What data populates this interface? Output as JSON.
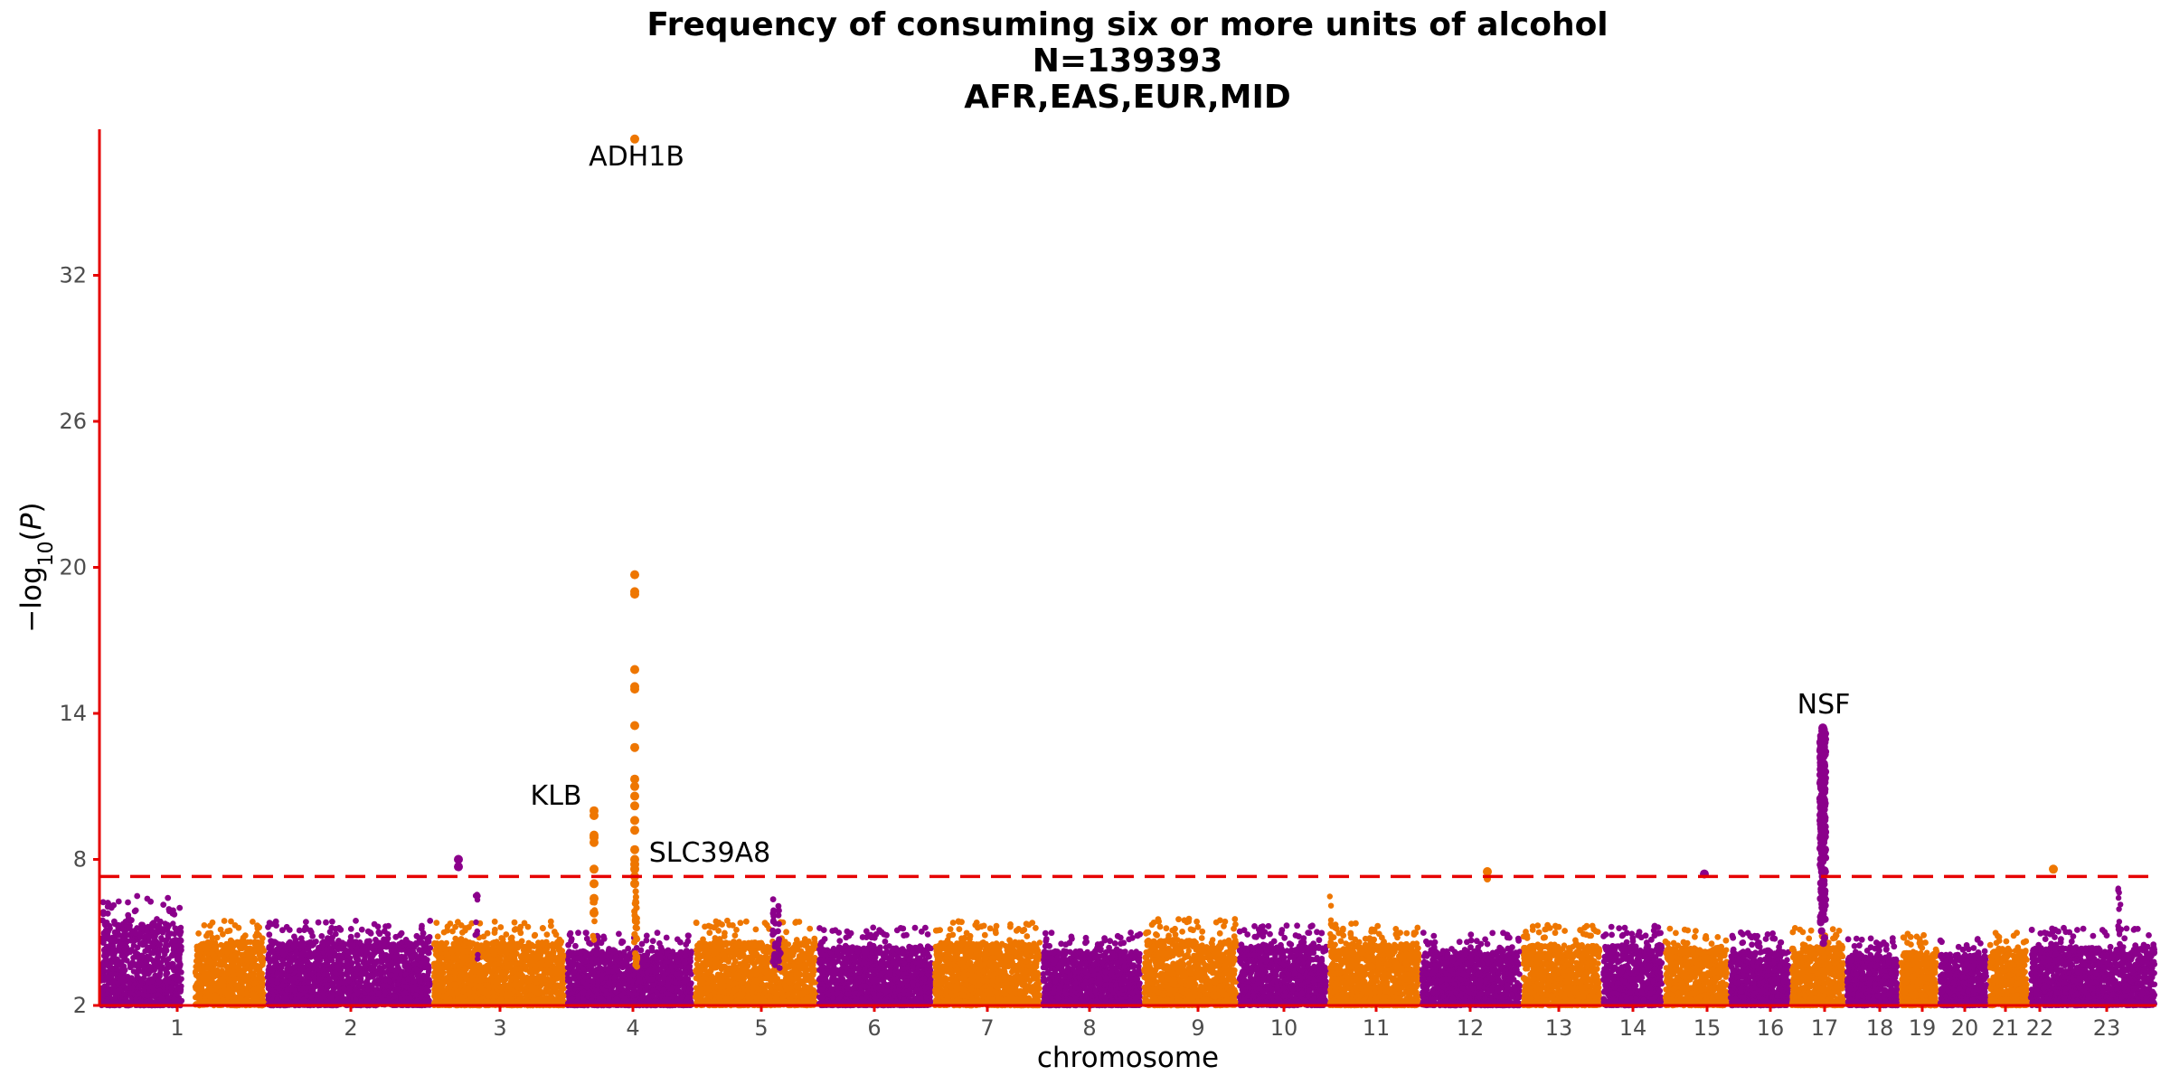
{
  "chart_data": {
    "type": "scatter",
    "subtype": "manhattan",
    "title_lines": [
      "Frequency of consuming six or more units of alcohol",
      "N=139393",
      "AFR,EAS,EUR,MID"
    ],
    "xlabel": "chromosome",
    "ylabel": "−log10(P)",
    "ylim": [
      2,
      38
    ],
    "yticks": [
      2,
      8,
      14,
      20,
      26,
      32
    ],
    "significance_threshold": 7.3,
    "grid": false,
    "colors": {
      "odd": "#8B008B",
      "even": "#EE7600",
      "axis": "#e60000",
      "threshold": "#e60000"
    },
    "chromosomes": [
      {
        "label": "1",
        "typical_max": 6.5,
        "peak": 6.5
      },
      {
        "label": "2",
        "typical_max": 5.5,
        "peak": 5.9
      },
      {
        "label": "3",
        "typical_max": 5.5,
        "peak": 8.0
      },
      {
        "label": "4",
        "typical_max": 5.5,
        "peak": 37.6
      },
      {
        "label": "5",
        "typical_max": 5.0,
        "peak": 6.4
      },
      {
        "label": "6",
        "typical_max": 5.5,
        "peak": 6.6
      },
      {
        "label": "7",
        "typical_max": 5.2,
        "peak": 5.5
      },
      {
        "label": "8",
        "typical_max": 5.5,
        "peak": 6.2
      },
      {
        "label": "9",
        "typical_max": 5.0,
        "peak": 5.4
      },
      {
        "label": "10",
        "typical_max": 5.6,
        "peak": 6.2
      },
      {
        "label": "11",
        "typical_max": 5.3,
        "peak": 7.1
      },
      {
        "label": "12",
        "typical_max": 5.4,
        "peak": 7.5
      },
      {
        "label": "13",
        "typical_max": 5.0,
        "peak": 5.4
      },
      {
        "label": "14",
        "typical_max": 5.3,
        "peak": 5.8
      },
      {
        "label": "15",
        "typical_max": 5.3,
        "peak": 7.4
      },
      {
        "label": "16",
        "typical_max": 5.2,
        "peak": 6.0
      },
      {
        "label": "17",
        "typical_max": 5.0,
        "peak": 13.4
      },
      {
        "label": "18",
        "typical_max": 5.2,
        "peak": 5.9
      },
      {
        "label": "19",
        "typical_max": 4.8,
        "peak": 5.1
      },
      {
        "label": "20",
        "typical_max": 5.0,
        "peak": 5.5
      },
      {
        "label": "21",
        "typical_max": 4.8,
        "peak": 5.6
      },
      {
        "label": "22",
        "typical_max": 5.0,
        "peak": 7.6
      },
      {
        "label": "23",
        "typical_max": 5.2,
        "peak": 6.9
      }
    ],
    "annotations": [
      {
        "gene": "ADH1B",
        "chromosome": "4",
        "y": 37.6
      },
      {
        "gene": "KLB",
        "chromosome": "4",
        "y": 10.0
      },
      {
        "gene": "SLC39A8",
        "chromosome": "4",
        "y": 7.9
      },
      {
        "gene": "NSF",
        "chromosome": "17",
        "y": 13.4
      }
    ]
  }
}
